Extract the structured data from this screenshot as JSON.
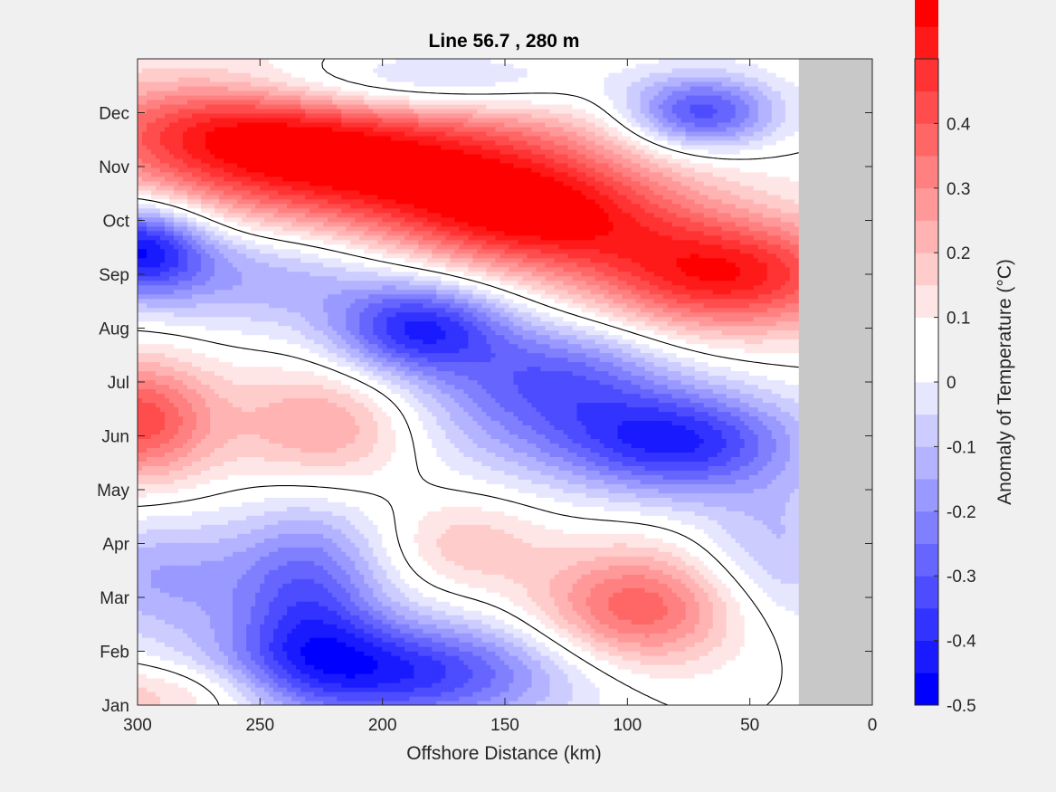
{
  "chart_data": {
    "type": "heatmap",
    "subtype": "filled-contour",
    "title": "Line 56.7 , 280 m",
    "xlabel": "Offshore Distance (km)",
    "ylabel": "",
    "xlim": [
      300,
      0
    ],
    "x_reversed": true,
    "x_ticks": [
      300,
      250,
      200,
      150,
      100,
      50,
      0
    ],
    "x_tick_labels": [
      "300",
      "250",
      "200",
      "150",
      "100",
      "50",
      "0"
    ],
    "ylim": [
      1,
      13
    ],
    "y_ticks": [
      1,
      2,
      3,
      4,
      5,
      6,
      7,
      8,
      9,
      10,
      11,
      12
    ],
    "y_tick_labels": [
      "Jan",
      "Feb",
      "Mar",
      "Apr",
      "May",
      "Jun",
      "Jul",
      "Aug",
      "Sep",
      "Oct",
      "Nov",
      "Dec"
    ],
    "data_extent_x": [
      300,
      30
    ],
    "no_data_region_x": [
      30,
      0
    ],
    "no_data_color": "#c8c8c8",
    "zero_contour_color": "#000000",
    "colorbar": {
      "label": "Anomaly of Temperature (°C)",
      "range": [
        -0.5,
        0.5
      ],
      "step": 0.05,
      "ticks": [
        -0.5,
        -0.4,
        -0.3,
        -0.2,
        -0.1,
        0,
        0.1,
        0.2,
        0.3,
        0.4
      ],
      "tick_labels": [
        "-0.5",
        "-0.4",
        "-0.3",
        "-0.2",
        "-0.1",
        "0",
        "0.1",
        "0.2",
        "0.3",
        "0.4"
      ],
      "colors_low_to_high": [
        "#0000ff",
        "#1a1aff",
        "#3333ff",
        "#4d4dff",
        "#6666ff",
        "#8080ff",
        "#9999ff",
        "#b3b3ff",
        "#ccccff",
        "#e6e6ff",
        "#ffffff",
        "#ffffff",
        "#ffe6e6",
        "#ffcccc",
        "#ffb3b3",
        "#ff9999",
        "#ff8080",
        "#ff6666",
        "#ff4d4d",
        "#ff3333",
        "#ff1a1a",
        "#ff0000"
      ]
    },
    "anomaly_features": [
      {
        "x": 290,
        "y": 1.2,
        "value": 0.15,
        "sigma_x": 45,
        "sigma_y": 0.45
      },
      {
        "x": 300,
        "y": 6.3,
        "value": 0.35,
        "sigma_x": 22,
        "sigma_y": 0.8
      },
      {
        "x": 265,
        "y": 11.8,
        "value": 0.3,
        "sigma_x": 45,
        "sigma_y": 0.8
      },
      {
        "x": 195,
        "y": 11.0,
        "value": 0.45,
        "sigma_x": 65,
        "sigma_y": 0.9
      },
      {
        "x": 135,
        "y": 10.0,
        "value": 0.34,
        "sigma_x": 40,
        "sigma_y": 0.7
      },
      {
        "x": 60,
        "y": 9.0,
        "value": 0.44,
        "sigma_x": 40,
        "sigma_y": 0.75
      },
      {
        "x": 222,
        "y": 6.2,
        "value": 0.22,
        "sigma_x": 28,
        "sigma_y": 0.8
      },
      {
        "x": 165,
        "y": 4.0,
        "value": 0.12,
        "sigma_x": 22,
        "sigma_y": 0.6
      },
      {
        "x": 95,
        "y": 2.8,
        "value": 0.32,
        "sigma_x": 30,
        "sigma_y": 0.8
      },
      {
        "x": 300,
        "y": 9.5,
        "value": -0.42,
        "sigma_x": 20,
        "sigma_y": 0.6
      },
      {
        "x": 200,
        "y": 12.5,
        "value": -0.2,
        "sigma_x": 55,
        "sigma_y": 0.45
      },
      {
        "x": 70,
        "y": 12.0,
        "value": -0.36,
        "sigma_x": 22,
        "sigma_y": 0.5
      },
      {
        "x": 185,
        "y": 8.0,
        "value": -0.38,
        "sigma_x": 25,
        "sigma_y": 0.6
      },
      {
        "x": 80,
        "y": 5.9,
        "value": -0.4,
        "sigma_x": 35,
        "sigma_y": 0.7
      },
      {
        "x": 195,
        "y": 1.6,
        "value": -0.4,
        "sigma_x": 50,
        "sigma_y": 0.7
      },
      {
        "x": 230,
        "y": 3.0,
        "value": -0.3,
        "sigma_x": 22,
        "sigma_y": 1.2
      },
      {
        "x": 290,
        "y": 3.4,
        "value": -0.18,
        "sigma_x": 28,
        "sigma_y": 0.8
      },
      {
        "x": 155,
        "y": 6.5,
        "value": -0.15,
        "sigma_x": 40,
        "sigma_y": 0.9
      },
      {
        "x": 250,
        "y": 9.0,
        "value": -0.18,
        "sigma_x": 40,
        "sigma_y": 0.7
      },
      {
        "x": 125,
        "y": 7.2,
        "value": -0.2,
        "sigma_x": 30,
        "sigma_y": 0.7
      },
      {
        "x": 40,
        "y": 3.8,
        "value": -0.15,
        "sigma_x": 25,
        "sigma_y": 1.0
      }
    ]
  }
}
